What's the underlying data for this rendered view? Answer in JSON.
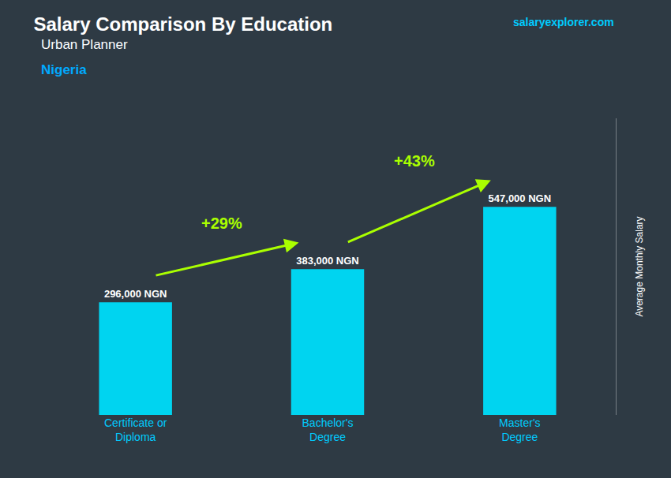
{
  "chart_data": {
    "type": "bar",
    "title": "Salary Comparison By Education",
    "subtitle": "Urban Planner",
    "caption": "Nigeria",
    "source": "salaryexplorer.com",
    "categories": [
      "Certificate or\nDiploma",
      "Bachelor's\nDegree",
      "Master's\nDegree"
    ],
    "values": [
      296000,
      383000,
      547000
    ],
    "value_labels": [
      "296,000 NGN",
      "383,000 NGN",
      "547,000 NGN"
    ],
    "data_labels": true,
    "color": "#00d4f0",
    "ylim": [
      0,
      780000
    ],
    "ylabel": "Average Monthly Salary",
    "tick_labels": "x",
    "grid": false,
    "annotations": [
      {
        "text": "+29%",
        "color": "#aaff00"
      },
      {
        "text": "+43%",
        "color": "#aaff00"
      }
    ]
  }
}
